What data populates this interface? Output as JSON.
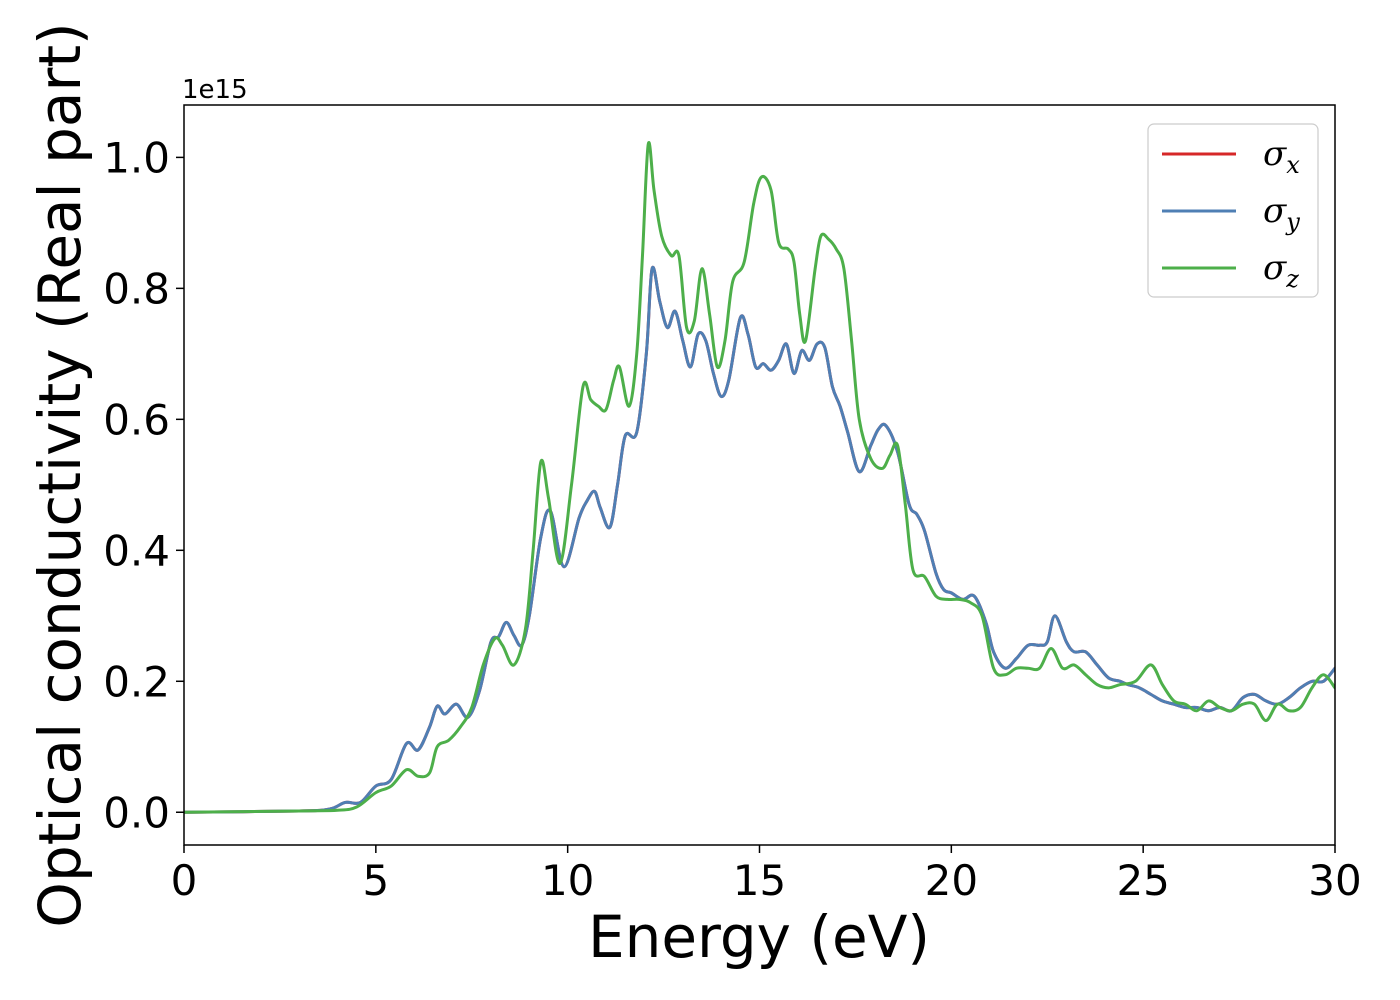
{
  "chart_data": {
    "type": "line",
    "title": "",
    "xlabel": "Energy (eV)",
    "ylabel": "Optical conductivity (Real part)",
    "y_offset_label": "1e15",
    "xlim": [
      0,
      30
    ],
    "ylim": [
      -0.05,
      1.08
    ],
    "x_ticks": [
      0,
      5,
      10,
      15,
      20,
      25,
      30
    ],
    "x_tick_labels": [
      "0",
      "5",
      "10",
      "15",
      "20",
      "25",
      "30"
    ],
    "y_ticks": [
      0.0,
      0.2,
      0.4,
      0.6,
      0.8,
      1.0
    ],
    "y_tick_labels": [
      "0.0",
      "0.2",
      "0.4",
      "0.6",
      "0.8",
      "1.0"
    ],
    "grid": false,
    "legend_position": "top-right",
    "series": [
      {
        "name": "σx",
        "legend_symbol": "σ",
        "legend_sub": "x",
        "color": "#d62728",
        "x": [
          0,
          3,
          3.8,
          4.2,
          4.6,
          5.0,
          5.4,
          5.8,
          6.1,
          6.4,
          6.6,
          6.8,
          7.1,
          7.4,
          7.7,
          8.0,
          8.2,
          8.4,
          8.6,
          8.8,
          9.0,
          9.3,
          9.55,
          9.9,
          10.3,
          10.5,
          10.7,
          10.85,
          11.1,
          11.3,
          11.5,
          11.8,
          12.05,
          12.2,
          12.4,
          12.6,
          12.8,
          13.0,
          13.2,
          13.4,
          13.6,
          13.8,
          14.0,
          14.2,
          14.5,
          14.7,
          14.9,
          15.1,
          15.3,
          15.5,
          15.7,
          15.9,
          16.1,
          16.3,
          16.5,
          16.7,
          16.9,
          17.1,
          17.3,
          17.6,
          17.9,
          18.1,
          18.3,
          18.6,
          18.9,
          19.1,
          19.3,
          19.6,
          19.8,
          20.0,
          20.3,
          20.6,
          20.9,
          21.1,
          21.4,
          21.7,
          22.0,
          22.3,
          22.5,
          22.7,
          23.0,
          23.2,
          23.5,
          23.8,
          24.1,
          24.4,
          24.6,
          24.9,
          25.2,
          25.5,
          25.8,
          26.1,
          26.4,
          26.7,
          27.0,
          27.3,
          27.6,
          27.9,
          28.2,
          28.5,
          28.8,
          29.1,
          29.4,
          29.7,
          30.0
        ],
        "y": [
          0,
          0.002,
          0.005,
          0.015,
          0.015,
          0.04,
          0.05,
          0.105,
          0.095,
          0.13,
          0.162,
          0.15,
          0.165,
          0.145,
          0.185,
          0.26,
          0.268,
          0.29,
          0.27,
          0.255,
          0.3,
          0.42,
          0.46,
          0.375,
          0.45,
          0.475,
          0.49,
          0.465,
          0.435,
          0.5,
          0.575,
          0.58,
          0.7,
          0.83,
          0.78,
          0.74,
          0.765,
          0.72,
          0.68,
          0.73,
          0.72,
          0.67,
          0.635,
          0.66,
          0.755,
          0.73,
          0.68,
          0.685,
          0.675,
          0.69,
          0.715,
          0.67,
          0.705,
          0.69,
          0.715,
          0.71,
          0.65,
          0.62,
          0.58,
          0.52,
          0.56,
          0.585,
          0.59,
          0.55,
          0.47,
          0.455,
          0.43,
          0.365,
          0.34,
          0.335,
          0.325,
          0.33,
          0.29,
          0.245,
          0.22,
          0.235,
          0.255,
          0.255,
          0.26,
          0.3,
          0.26,
          0.245,
          0.245,
          0.225,
          0.205,
          0.2,
          0.195,
          0.19,
          0.18,
          0.17,
          0.165,
          0.16,
          0.16,
          0.155,
          0.16,
          0.155,
          0.175,
          0.18,
          0.17,
          0.165,
          0.175,
          0.19,
          0.2,
          0.2,
          0.22
        ]
      },
      {
        "name": "σy",
        "legend_symbol": "σ",
        "legend_sub": "y",
        "color": "#4f7fb4",
        "x": [
          0,
          3,
          3.8,
          4.2,
          4.6,
          5.0,
          5.4,
          5.8,
          6.1,
          6.4,
          6.6,
          6.8,
          7.1,
          7.4,
          7.7,
          8.0,
          8.2,
          8.4,
          8.6,
          8.8,
          9.0,
          9.3,
          9.55,
          9.9,
          10.3,
          10.5,
          10.7,
          10.85,
          11.1,
          11.3,
          11.5,
          11.8,
          12.05,
          12.2,
          12.4,
          12.6,
          12.8,
          13.0,
          13.2,
          13.4,
          13.6,
          13.8,
          14.0,
          14.2,
          14.5,
          14.7,
          14.9,
          15.1,
          15.3,
          15.5,
          15.7,
          15.9,
          16.1,
          16.3,
          16.5,
          16.7,
          16.9,
          17.1,
          17.3,
          17.6,
          17.9,
          18.1,
          18.3,
          18.6,
          18.9,
          19.1,
          19.3,
          19.6,
          19.8,
          20.0,
          20.3,
          20.6,
          20.9,
          21.1,
          21.4,
          21.7,
          22.0,
          22.3,
          22.5,
          22.7,
          23.0,
          23.2,
          23.5,
          23.8,
          24.1,
          24.4,
          24.6,
          24.9,
          25.2,
          25.5,
          25.8,
          26.1,
          26.4,
          26.7,
          27.0,
          27.3,
          27.6,
          27.9,
          28.2,
          28.5,
          28.8,
          29.1,
          29.4,
          29.7,
          30.0
        ],
        "y": [
          0,
          0.002,
          0.005,
          0.015,
          0.015,
          0.04,
          0.05,
          0.105,
          0.095,
          0.13,
          0.162,
          0.15,
          0.165,
          0.145,
          0.185,
          0.26,
          0.268,
          0.29,
          0.27,
          0.255,
          0.3,
          0.42,
          0.46,
          0.375,
          0.45,
          0.475,
          0.49,
          0.465,
          0.435,
          0.5,
          0.575,
          0.58,
          0.7,
          0.83,
          0.78,
          0.74,
          0.765,
          0.72,
          0.68,
          0.73,
          0.72,
          0.67,
          0.635,
          0.66,
          0.755,
          0.73,
          0.68,
          0.685,
          0.675,
          0.69,
          0.715,
          0.67,
          0.705,
          0.69,
          0.715,
          0.71,
          0.65,
          0.62,
          0.58,
          0.52,
          0.56,
          0.585,
          0.59,
          0.55,
          0.47,
          0.455,
          0.43,
          0.365,
          0.34,
          0.335,
          0.325,
          0.33,
          0.29,
          0.245,
          0.22,
          0.235,
          0.255,
          0.255,
          0.26,
          0.3,
          0.26,
          0.245,
          0.245,
          0.225,
          0.205,
          0.2,
          0.195,
          0.19,
          0.18,
          0.17,
          0.165,
          0.16,
          0.16,
          0.155,
          0.16,
          0.155,
          0.175,
          0.18,
          0.17,
          0.165,
          0.175,
          0.19,
          0.2,
          0.2,
          0.22
        ]
      },
      {
        "name": "σz",
        "legend_symbol": "σ",
        "legend_sub": "z",
        "color": "#4daf4a",
        "x": [
          0,
          3,
          4.0,
          4.5,
          5.0,
          5.4,
          5.8,
          6.1,
          6.4,
          6.6,
          6.9,
          7.2,
          7.5,
          7.8,
          8.1,
          8.3,
          8.6,
          8.9,
          9.1,
          9.3,
          9.5,
          9.8,
          10.1,
          10.4,
          10.6,
          10.8,
          11.0,
          11.2,
          11.35,
          11.6,
          11.8,
          11.95,
          12.1,
          12.25,
          12.45,
          12.7,
          12.9,
          13.1,
          13.3,
          13.5,
          13.7,
          13.9,
          14.1,
          14.3,
          14.6,
          14.85,
          15.05,
          15.3,
          15.5,
          15.75,
          15.9,
          16.05,
          16.2,
          16.45,
          16.6,
          16.8,
          17.0,
          17.2,
          17.4,
          17.6,
          17.9,
          18.2,
          18.4,
          18.6,
          18.8,
          19.0,
          19.3,
          19.6,
          19.9,
          20.2,
          20.5,
          20.8,
          21.1,
          21.4,
          21.7,
          22.0,
          22.3,
          22.6,
          22.9,
          23.2,
          23.5,
          23.8,
          24.1,
          24.4,
          24.8,
          25.2,
          25.5,
          25.8,
          26.1,
          26.4,
          26.7,
          27.0,
          27.3,
          27.6,
          27.9,
          28.2,
          28.5,
          28.8,
          29.1,
          29.4,
          29.7,
          30.0
        ],
        "y": [
          0,
          0.002,
          0.003,
          0.008,
          0.03,
          0.04,
          0.065,
          0.055,
          0.06,
          0.1,
          0.11,
          0.13,
          0.16,
          0.225,
          0.265,
          0.255,
          0.225,
          0.28,
          0.4,
          0.535,
          0.48,
          0.38,
          0.5,
          0.65,
          0.63,
          0.62,
          0.615,
          0.66,
          0.68,
          0.62,
          0.7,
          0.85,
          1.02,
          0.95,
          0.88,
          0.85,
          0.85,
          0.74,
          0.75,
          0.83,
          0.76,
          0.68,
          0.72,
          0.81,
          0.84,
          0.93,
          0.97,
          0.95,
          0.87,
          0.86,
          0.84,
          0.76,
          0.72,
          0.83,
          0.88,
          0.875,
          0.86,
          0.83,
          0.72,
          0.6,
          0.54,
          0.525,
          0.545,
          0.56,
          0.47,
          0.37,
          0.36,
          0.33,
          0.325,
          0.325,
          0.32,
          0.3,
          0.22,
          0.21,
          0.22,
          0.22,
          0.22,
          0.25,
          0.22,
          0.225,
          0.21,
          0.195,
          0.19,
          0.195,
          0.2,
          0.225,
          0.195,
          0.17,
          0.165,
          0.155,
          0.17,
          0.16,
          0.155,
          0.165,
          0.165,
          0.14,
          0.165,
          0.155,
          0.16,
          0.19,
          0.21,
          0.19
        ]
      }
    ]
  }
}
